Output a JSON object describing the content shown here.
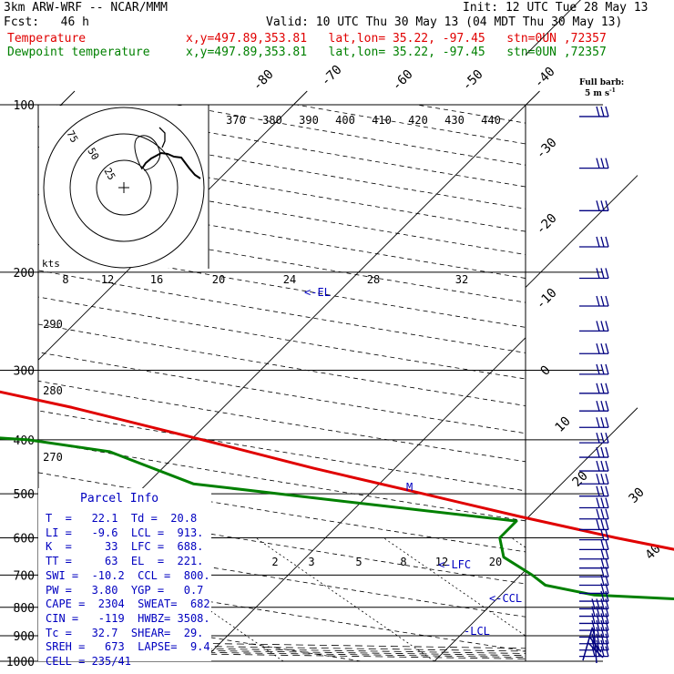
{
  "header": {
    "model": "3km ARW-WRF -- NCAR/MMM",
    "init": "Init: 12 UTC Tue 28 May 13",
    "fcst": "Fcst:   46 h",
    "valid": "Valid: 10 UTC Thu 30 May 13 (04 MDT Thu 30 May 13)",
    "temp_label": "Temperature",
    "dew_label": "Dewpoint temperature",
    "temp_coords": "x,y=497.89,353.81   lat,lon= 35.22, -97.45   stn=0UN ,72357",
    "dew_coords": "x,y=497.89,353.81   lat,lon= 35.22, -97.45   stn=0UN ,72357"
  },
  "barb_title": "Full barb:",
  "barb_units": "5 m s",
  "barb_units_sup": "-1",
  "hodograph": {
    "units": "kts",
    "rings": [
      "25",
      "50",
      "75"
    ]
  },
  "parcel": {
    "title": "Parcel Info",
    "rows": [
      "T  =   22.1  Td =  20.8",
      "LI =   -9.6  LCL =  913.",
      "K  =     33  LFC =  688.",
      "TT =     63  EL  =  221.",
      "SWI =  -10.2  CCL =  800.",
      "PW =   3.80  YGP =   0.7",
      "CAPE =  2304  SWEAT=  682",
      "CIN =   -119  HWBZ= 3508.",
      "Tc =   32.7  SHEAR=  29.",
      "SREH =   673  LAPSE=  9.4",
      "CELL = 235/41"
    ]
  },
  "level_labels": {
    "lcl": "-LCL",
    "ccl": "<-CCL",
    "lfc": "<-LFC",
    "el": "<-EL",
    "m": "M"
  },
  "chart_data": {
    "type": "skew-t",
    "pressure_axis": {
      "label_levels": [
        100,
        200,
        300,
        400,
        500,
        600,
        700,
        800,
        900,
        1000
      ],
      "range": [
        1000,
        100
      ],
      "scale": "log"
    },
    "isotherm_labels": [
      "-80",
      "-70",
      "-60",
      "-50",
      "-40",
      "-30",
      "-20",
      "-10",
      "0",
      "10",
      "20",
      "30",
      "40"
    ],
    "theta_labels": [
      "370",
      "380",
      "390",
      "400",
      "410",
      "420",
      "430",
      "440"
    ],
    "mixing_ratio_labels": [
      "8",
      "12",
      "16",
      "20",
      "24",
      "28",
      "32"
    ],
    "mixing_ratio_low_labels": [
      "2",
      "3",
      "5",
      "8",
      "12",
      "20"
    ],
    "left_theta_labels": [
      "290",
      "280",
      "270"
    ],
    "series": [
      {
        "name": "Temperature",
        "color": "#e00000",
        "points": [
          [
            988,
            22.1
          ],
          [
            960,
            21.2
          ],
          [
            930,
            20.2
          ],
          [
            900,
            19.3
          ],
          [
            850,
            19.0
          ],
          [
            800,
            19.8
          ],
          [
            780,
            19.5
          ],
          [
            750,
            16.8
          ],
          [
            700,
            12.8
          ],
          [
            650,
            7.5
          ],
          [
            600,
            2.5
          ],
          [
            550,
            -2.5
          ],
          [
            500,
            -7.7
          ],
          [
            450,
            -13.5
          ],
          [
            400,
            -19.5
          ],
          [
            350,
            -26.5
          ],
          [
            300,
            -35.5
          ],
          [
            250,
            -45.5
          ],
          [
            200,
            -55.0
          ],
          [
            180,
            -59.5
          ],
          [
            150,
            -64.0
          ],
          [
            130,
            -65.5
          ],
          [
            110,
            -68.0
          ],
          [
            100,
            -71.0
          ]
        ]
      },
      {
        "name": "Dewpoint temperature",
        "color": "#008000",
        "points": [
          [
            988,
            20.8
          ],
          [
            960,
            19.7
          ],
          [
            930,
            18.9
          ],
          [
            900,
            18.2
          ],
          [
            850,
            17.8
          ],
          [
            800,
            15.5
          ],
          [
            760,
            4.0
          ],
          [
            730,
            1.5
          ],
          [
            700,
            0.5
          ],
          [
            650,
            -1.5
          ],
          [
            600,
            -2.5
          ],
          [
            560,
            -2.5
          ],
          [
            520,
            -10.0
          ],
          [
            480,
            -18.0
          ],
          [
            420,
            -23.0
          ],
          [
            400,
            -27.0
          ],
          [
            380,
            -36.0
          ],
          [
            340,
            -60.0
          ],
          [
            320,
            -66.0
          ],
          [
            300,
            -58.0
          ],
          [
            270,
            -54.0
          ],
          [
            250,
            -57.0
          ],
          [
            220,
            -60.0
          ],
          [
            200,
            -60.0
          ],
          [
            170,
            -64.0
          ],
          [
            150,
            -67.0
          ],
          [
            120,
            -72.0
          ],
          [
            100,
            -77.0
          ]
        ]
      }
    ]
  },
  "colors": {
    "temp": "#e00000",
    "dew": "#008000",
    "text_blue": "#0000c0",
    "barbs": "#000080",
    "grid": "#000000"
  }
}
